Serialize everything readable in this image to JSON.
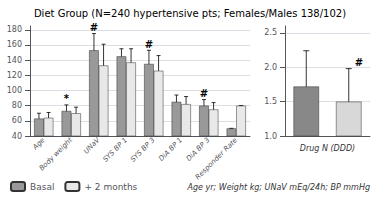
{
  "chart_data": [
    {
      "type": "bar",
      "title": "Diet Group (N=240 hypertensive pts; Females/Males 138/102)",
      "categories": [
        "Age",
        "Body weight",
        "UNaV",
        "SYS BP 1",
        "SYS BP 3",
        "DiA BP 1",
        "DiA BP 3",
        "Responder Rate"
      ],
      "series": [
        {
          "name": "Basal",
          "color": "#999999",
          "values": [
            63,
            73,
            153,
            145,
            135,
            85,
            80,
            50
          ],
          "errors": [
            7,
            8,
            22,
            10,
            18,
            9,
            8,
            0
          ]
        },
        {
          "name": "+ 2 months",
          "color": "#e8e8e8",
          "values": [
            64,
            70,
            133,
            137,
            126,
            82,
            75,
            80
          ],
          "errors": [
            7,
            8,
            28,
            18,
            20,
            10,
            9,
            0
          ]
        }
      ],
      "ylim": [
        40,
        185
      ],
      "yticks": [
        40,
        60,
        80,
        100,
        120,
        140,
        160,
        180
      ],
      "grid": true,
      "legend": "bottom left",
      "annotations": [
        {
          "category": "Body weight",
          "series": "Basal",
          "text": "*"
        },
        {
          "category": "UNaV",
          "series": "Basal",
          "text": "#"
        },
        {
          "category": "SYS BP 3",
          "series": "Basal",
          "text": "#"
        },
        {
          "category": "DiA BP 3",
          "series": "Basal",
          "text": "#"
        },
        {
          "text": "Age yr; Weight kg; UNaV mEq/24h; BP mmHg"
        }
      ]
    },
    {
      "type": "bar",
      "categories": [
        null,
        null
      ],
      "values": [
        1.72,
        1.5
      ],
      "errors": [
        0.52,
        0.48
      ],
      "colors": [
        "#888888",
        "#d8d8d8"
      ],
      "xlabel": "Drug N (DDD)",
      "ylim": [
        1,
        2.6
      ],
      "yticks": [
        {
          "value": 1,
          "label": "1.0"
        },
        1.5,
        {
          "value": 2,
          "label": "2.0"
        },
        2.5
      ],
      "grid": true,
      "tick_labels": "y",
      "annotations": [
        {
          "index": 1,
          "text": "#"
        }
      ]
    }
  ]
}
